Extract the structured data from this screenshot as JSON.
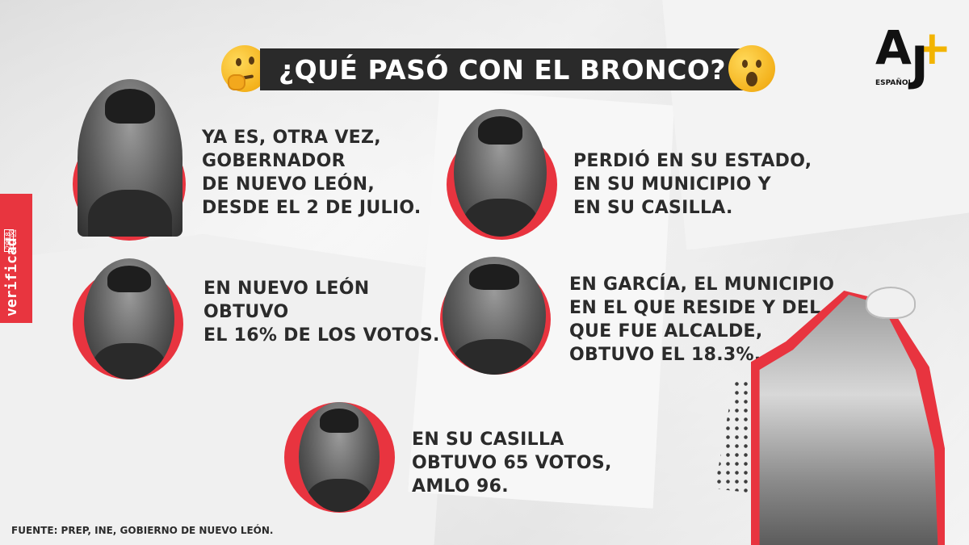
{
  "title": "¿QUÉ PASÓ CON EL BRONCO?",
  "brand": {
    "logo_mark": "AJ+",
    "logo_sub": "ESPAÑOL"
  },
  "side_badge": {
    "label": "verificad☒",
    "year": "2018"
  },
  "icons": {
    "thinking": "thinking-face-emoji-icon",
    "surprised": "surprised-face-emoji-icon"
  },
  "accent_color": "#e8343f",
  "cards": [
    {
      "text": "YA ES, OTRA VEZ,\nGOBERNADOR\nDE NUEVO LEÓN,\nDESDE EL 2 DE JULIO."
    },
    {
      "text": "PERDIÓ EN SU ESTADO,\nEN SU MUNICIPIO Y\nEN SU CASILLA."
    },
    {
      "text": "EN NUEVO LEÓN\nOBTUVO\nEL 16% DE LOS VOTOS."
    },
    {
      "text": "EN GARCÍA, EL MUNICIPIO\nEN EL QUE RESIDE Y DEL\nQUE FUE ALCALDE,\nOBTUVO EL 18.3%."
    },
    {
      "text": "EN SU CASILLA\nOBTUVO 65 VOTOS,\nAMLO 96."
    }
  ],
  "footer": "FUENTE: PREP, INE, GOBIERNO DE NUEVO LEÓN."
}
